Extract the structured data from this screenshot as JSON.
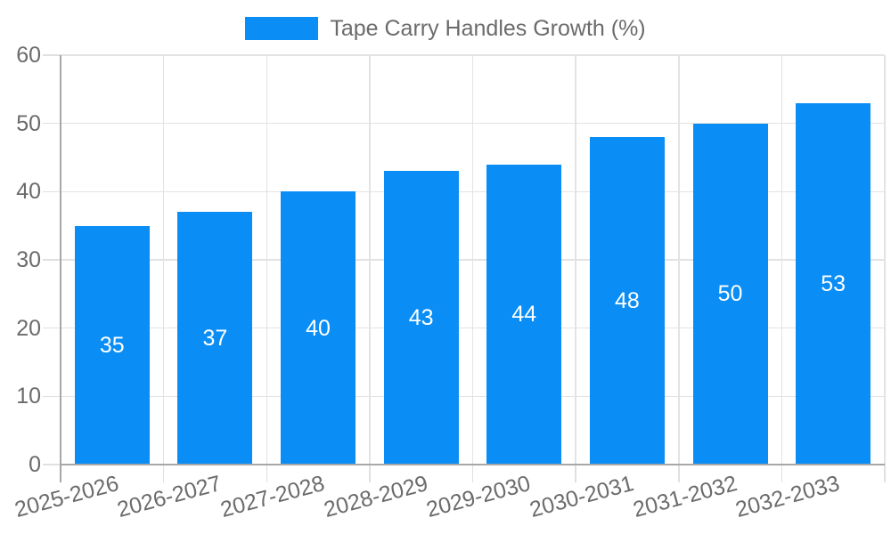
{
  "chart_data": {
    "type": "bar",
    "title": "",
    "legend": {
      "label": "Tape Carry Handles Growth (%)",
      "position": "top-center"
    },
    "categories": [
      "2025-2026",
      "2026-2027",
      "2027-2028",
      "2028-2029",
      "2029-2030",
      "2030-2031",
      "2031-2032",
      "2032-2033"
    ],
    "values": [
      35,
      37,
      40,
      43,
      44,
      48,
      50,
      53
    ],
    "xlabel": "",
    "ylabel": "",
    "ylim": [
      0,
      60
    ],
    "yticks": [
      0,
      10,
      20,
      30,
      40,
      50,
      60
    ],
    "grid": "on",
    "value_labels": "inside-center",
    "x_label_rotation_deg": -15
  },
  "colors": {
    "bar": "#0a8ef6",
    "grid": "#e3e3e3",
    "tick": "#e0e0e0",
    "axis": "#a7a7a7",
    "text": "#6b6b6b",
    "value_label": "#ffffff",
    "background": "#ffffff"
  }
}
